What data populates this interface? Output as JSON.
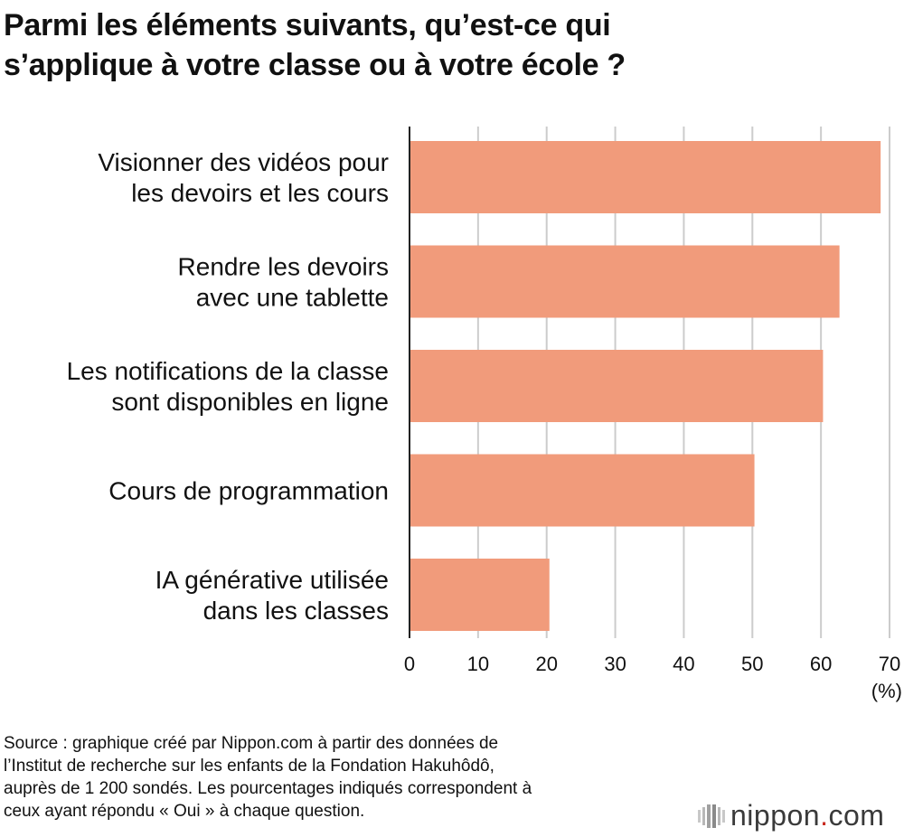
{
  "title_lines": [
    "Parmi les éléments suivants, qu’est-ce qui",
    "s’applique à votre classe ou à votre école ?"
  ],
  "chart_data": {
    "type": "bar",
    "orientation": "horizontal",
    "categories": [
      [
        "Visionner des vidéos pour",
        "les devoirs et les cours"
      ],
      [
        "Rendre les devoirs",
        "avec une tablette"
      ],
      [
        "Les notifications de la classe",
        "sont disponibles en ligne"
      ],
      [
        "Cours de programmation"
      ],
      [
        "IA générative utilisée",
        "dans les classes"
      ]
    ],
    "values": [
      68.7,
      62.7,
      60.3,
      50.3,
      20.4
    ],
    "xlim": [
      0,
      70
    ],
    "xticks": [
      0,
      10,
      20,
      30,
      40,
      50,
      60,
      70
    ],
    "xlabel": "(%)",
    "bar_color": "#f19b7b",
    "grid": true
  },
  "source_lines": [
    "Source : graphique créé par Nippon.com à partir des données de",
    "l’Institut de recherche sur les enfants de la Fondation Hakuhôdô,",
    "auprès de 1 200 sondés. Les pourcentages indiqués correspondent à",
    "ceux ayant répondu « Oui » à chaque question."
  ],
  "logo": {
    "name": "nippon",
    "dot": ".",
    "suffix": "com"
  }
}
